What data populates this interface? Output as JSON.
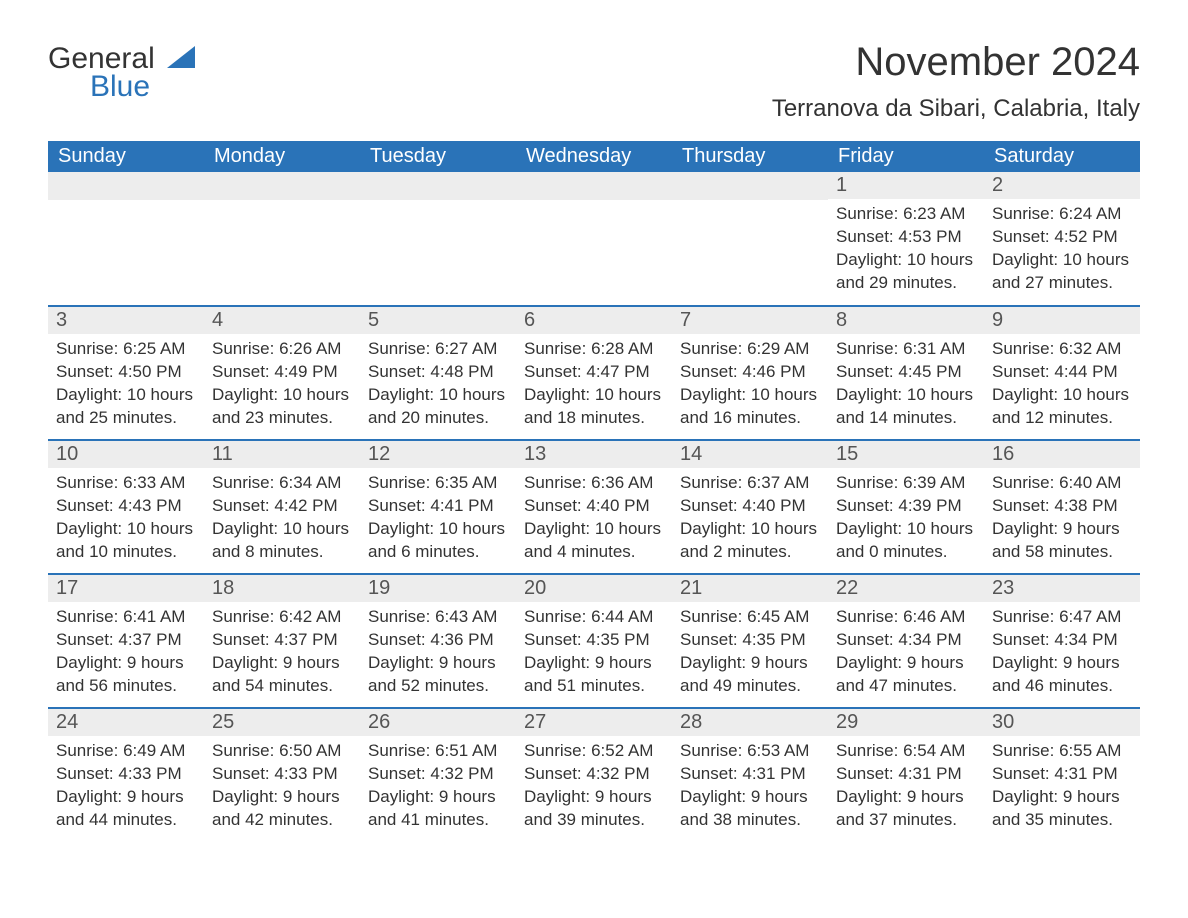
{
  "logo": {
    "general": "General",
    "blue": "Blue",
    "shape_color": "#2a73b8"
  },
  "title": "November 2024",
  "location": "Terranova da Sibari, Calabria, Italy",
  "colors": {
    "header_bg": "#2a73b8",
    "header_text": "#ffffff",
    "daynum_bg": "#ededed",
    "text": "#333333",
    "row_border": "#2a73b8"
  },
  "fonts": {
    "title_size_pt": 40,
    "location_size_pt": 24,
    "header_size_pt": 20,
    "daynum_size_pt": 20,
    "body_size_pt": 17
  },
  "day_headers": [
    "Sunday",
    "Monday",
    "Tuesday",
    "Wednesday",
    "Thursday",
    "Friday",
    "Saturday"
  ],
  "weeks": [
    [
      null,
      null,
      null,
      null,
      null,
      {
        "n": "1",
        "sunrise": "Sunrise: 6:23 AM",
        "sunset": "Sunset: 4:53 PM",
        "daylight1": "Daylight: 10 hours",
        "daylight2": "and 29 minutes."
      },
      {
        "n": "2",
        "sunrise": "Sunrise: 6:24 AM",
        "sunset": "Sunset: 4:52 PM",
        "daylight1": "Daylight: 10 hours",
        "daylight2": "and 27 minutes."
      }
    ],
    [
      {
        "n": "3",
        "sunrise": "Sunrise: 6:25 AM",
        "sunset": "Sunset: 4:50 PM",
        "daylight1": "Daylight: 10 hours",
        "daylight2": "and 25 minutes."
      },
      {
        "n": "4",
        "sunrise": "Sunrise: 6:26 AM",
        "sunset": "Sunset: 4:49 PM",
        "daylight1": "Daylight: 10 hours",
        "daylight2": "and 23 minutes."
      },
      {
        "n": "5",
        "sunrise": "Sunrise: 6:27 AM",
        "sunset": "Sunset: 4:48 PM",
        "daylight1": "Daylight: 10 hours",
        "daylight2": "and 20 minutes."
      },
      {
        "n": "6",
        "sunrise": "Sunrise: 6:28 AM",
        "sunset": "Sunset: 4:47 PM",
        "daylight1": "Daylight: 10 hours",
        "daylight2": "and 18 minutes."
      },
      {
        "n": "7",
        "sunrise": "Sunrise: 6:29 AM",
        "sunset": "Sunset: 4:46 PM",
        "daylight1": "Daylight: 10 hours",
        "daylight2": "and 16 minutes."
      },
      {
        "n": "8",
        "sunrise": "Sunrise: 6:31 AM",
        "sunset": "Sunset: 4:45 PM",
        "daylight1": "Daylight: 10 hours",
        "daylight2": "and 14 minutes."
      },
      {
        "n": "9",
        "sunrise": "Sunrise: 6:32 AM",
        "sunset": "Sunset: 4:44 PM",
        "daylight1": "Daylight: 10 hours",
        "daylight2": "and 12 minutes."
      }
    ],
    [
      {
        "n": "10",
        "sunrise": "Sunrise: 6:33 AM",
        "sunset": "Sunset: 4:43 PM",
        "daylight1": "Daylight: 10 hours",
        "daylight2": "and 10 minutes."
      },
      {
        "n": "11",
        "sunrise": "Sunrise: 6:34 AM",
        "sunset": "Sunset: 4:42 PM",
        "daylight1": "Daylight: 10 hours",
        "daylight2": "and 8 minutes."
      },
      {
        "n": "12",
        "sunrise": "Sunrise: 6:35 AM",
        "sunset": "Sunset: 4:41 PM",
        "daylight1": "Daylight: 10 hours",
        "daylight2": "and 6 minutes."
      },
      {
        "n": "13",
        "sunrise": "Sunrise: 6:36 AM",
        "sunset": "Sunset: 4:40 PM",
        "daylight1": "Daylight: 10 hours",
        "daylight2": "and 4 minutes."
      },
      {
        "n": "14",
        "sunrise": "Sunrise: 6:37 AM",
        "sunset": "Sunset: 4:40 PM",
        "daylight1": "Daylight: 10 hours",
        "daylight2": "and 2 minutes."
      },
      {
        "n": "15",
        "sunrise": "Sunrise: 6:39 AM",
        "sunset": "Sunset: 4:39 PM",
        "daylight1": "Daylight: 10 hours",
        "daylight2": "and 0 minutes."
      },
      {
        "n": "16",
        "sunrise": "Sunrise: 6:40 AM",
        "sunset": "Sunset: 4:38 PM",
        "daylight1": "Daylight: 9 hours",
        "daylight2": "and 58 minutes."
      }
    ],
    [
      {
        "n": "17",
        "sunrise": "Sunrise: 6:41 AM",
        "sunset": "Sunset: 4:37 PM",
        "daylight1": "Daylight: 9 hours",
        "daylight2": "and 56 minutes."
      },
      {
        "n": "18",
        "sunrise": "Sunrise: 6:42 AM",
        "sunset": "Sunset: 4:37 PM",
        "daylight1": "Daylight: 9 hours",
        "daylight2": "and 54 minutes."
      },
      {
        "n": "19",
        "sunrise": "Sunrise: 6:43 AM",
        "sunset": "Sunset: 4:36 PM",
        "daylight1": "Daylight: 9 hours",
        "daylight2": "and 52 minutes."
      },
      {
        "n": "20",
        "sunrise": "Sunrise: 6:44 AM",
        "sunset": "Sunset: 4:35 PM",
        "daylight1": "Daylight: 9 hours",
        "daylight2": "and 51 minutes."
      },
      {
        "n": "21",
        "sunrise": "Sunrise: 6:45 AM",
        "sunset": "Sunset: 4:35 PM",
        "daylight1": "Daylight: 9 hours",
        "daylight2": "and 49 minutes."
      },
      {
        "n": "22",
        "sunrise": "Sunrise: 6:46 AM",
        "sunset": "Sunset: 4:34 PM",
        "daylight1": "Daylight: 9 hours",
        "daylight2": "and 47 minutes."
      },
      {
        "n": "23",
        "sunrise": "Sunrise: 6:47 AM",
        "sunset": "Sunset: 4:34 PM",
        "daylight1": "Daylight: 9 hours",
        "daylight2": "and 46 minutes."
      }
    ],
    [
      {
        "n": "24",
        "sunrise": "Sunrise: 6:49 AM",
        "sunset": "Sunset: 4:33 PM",
        "daylight1": "Daylight: 9 hours",
        "daylight2": "and 44 minutes."
      },
      {
        "n": "25",
        "sunrise": "Sunrise: 6:50 AM",
        "sunset": "Sunset: 4:33 PM",
        "daylight1": "Daylight: 9 hours",
        "daylight2": "and 42 minutes."
      },
      {
        "n": "26",
        "sunrise": "Sunrise: 6:51 AM",
        "sunset": "Sunset: 4:32 PM",
        "daylight1": "Daylight: 9 hours",
        "daylight2": "and 41 minutes."
      },
      {
        "n": "27",
        "sunrise": "Sunrise: 6:52 AM",
        "sunset": "Sunset: 4:32 PM",
        "daylight1": "Daylight: 9 hours",
        "daylight2": "and 39 minutes."
      },
      {
        "n": "28",
        "sunrise": "Sunrise: 6:53 AM",
        "sunset": "Sunset: 4:31 PM",
        "daylight1": "Daylight: 9 hours",
        "daylight2": "and 38 minutes."
      },
      {
        "n": "29",
        "sunrise": "Sunrise: 6:54 AM",
        "sunset": "Sunset: 4:31 PM",
        "daylight1": "Daylight: 9 hours",
        "daylight2": "and 37 minutes."
      },
      {
        "n": "30",
        "sunrise": "Sunrise: 6:55 AM",
        "sunset": "Sunset: 4:31 PM",
        "daylight1": "Daylight: 9 hours",
        "daylight2": "and 35 minutes."
      }
    ]
  ]
}
